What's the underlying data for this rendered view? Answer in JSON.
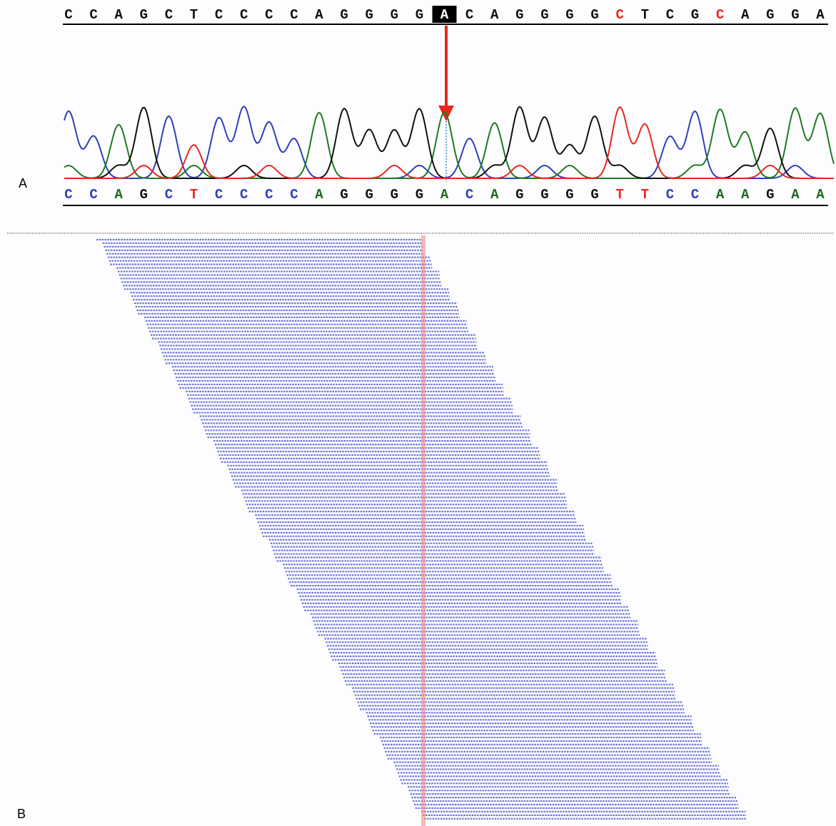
{
  "panel_a": {
    "label": "A",
    "top_sequence": [
      "C",
      "C",
      "A",
      "G",
      "C",
      "T",
      "C",
      "C",
      "C",
      "C",
      "A",
      "G",
      "G",
      "G",
      "G",
      "A",
      "C",
      "A",
      "G",
      "G",
      "G",
      "G",
      "C",
      "T",
      "C",
      "G",
      "C",
      "A",
      "G",
      "G",
      "A"
    ],
    "highlight_index": 15,
    "top_red_indices": [
      22,
      26
    ],
    "bottom_sequence": [
      "C",
      "C",
      "A",
      "G",
      "C",
      "T",
      "C",
      "C",
      "C",
      "C",
      "A",
      "G",
      "G",
      "G",
      "G",
      "A",
      "C",
      "A",
      "G",
      "G",
      "G",
      "G",
      "T",
      "T",
      "C",
      "C",
      "A",
      "A",
      "G",
      "A",
      "A"
    ]
  },
  "panel_b": {
    "label": "B"
  }
}
